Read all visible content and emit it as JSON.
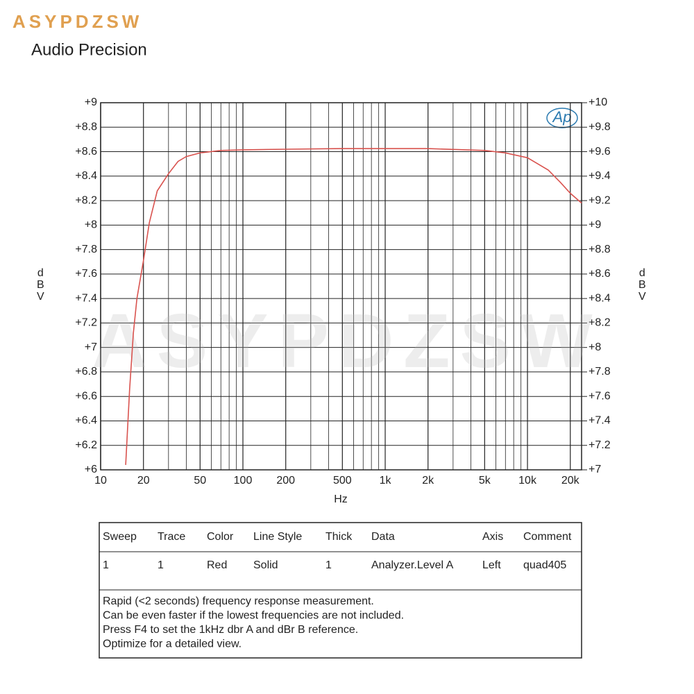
{
  "brand": "ASYPDZSW",
  "header": "Audio Precision",
  "chart_data": {
    "type": "line",
    "x_label": "Hz",
    "y_label": "dBV",
    "y2_label": "dBV",
    "logo": "Ap",
    "watermark": "ASYPDZSW",
    "x_scale": "log",
    "grid": true,
    "xlim": [
      10,
      24000
    ],
    "xticks": [
      10,
      20,
      50,
      100,
      200,
      500,
      {
        "value": 1000,
        "label": "1k"
      },
      {
        "value": 2000,
        "label": "2k"
      },
      {
        "value": 5000,
        "label": "5k"
      },
      {
        "value": 10000,
        "label": "10k"
      },
      {
        "value": 20000,
        "label": "20k"
      }
    ],
    "x_minor_ticks": [
      30,
      40,
      60,
      70,
      80,
      90,
      300,
      400,
      600,
      700,
      800,
      900,
      3000,
      4000,
      6000,
      7000,
      8000,
      9000
    ],
    "ylim": [
      6,
      9
    ],
    "yticks": [
      {
        "value": 6,
        "label": "+6"
      },
      {
        "value": 6.2,
        "label": "+6.2"
      },
      {
        "value": 6.4,
        "label": "+6.4"
      },
      {
        "value": 6.6,
        "label": "+6.6"
      },
      {
        "value": 6.8,
        "label": "+6.8"
      },
      {
        "value": 7,
        "label": "+7"
      },
      {
        "value": 7.2,
        "label": "+7.2"
      },
      {
        "value": 7.4,
        "label": "+7.4"
      },
      {
        "value": 7.6,
        "label": "+7.6"
      },
      {
        "value": 7.8,
        "label": "+7.8"
      },
      {
        "value": 8,
        "label": "+8"
      },
      {
        "value": 8.2,
        "label": "+8.2"
      },
      {
        "value": 8.4,
        "label": "+8.4"
      },
      {
        "value": 8.6,
        "label": "+8.6"
      },
      {
        "value": 8.8,
        "label": "+8.8"
      },
      {
        "value": 9,
        "label": "+9"
      }
    ],
    "y2lim": [
      7,
      10
    ],
    "y2ticks": [
      {
        "value": 7,
        "label": "+7"
      },
      {
        "value": 7.2,
        "label": "+7.2"
      },
      {
        "value": 7.4,
        "label": "+7.4"
      },
      {
        "value": 7.6,
        "label": "+7.6"
      },
      {
        "value": 7.8,
        "label": "+7.8"
      },
      {
        "value": 8,
        "label": "+8"
      },
      {
        "value": 8.2,
        "label": "+8.2"
      },
      {
        "value": 8.4,
        "label": "+8.4"
      },
      {
        "value": 8.6,
        "label": "+8.6"
      },
      {
        "value": 8.8,
        "label": "+8.8"
      },
      {
        "value": 9,
        "label": "+9"
      },
      {
        "value": 9.2,
        "label": "+9.2"
      },
      {
        "value": 9.4,
        "label": "+9.4"
      },
      {
        "value": 9.6,
        "label": "+9.6"
      },
      {
        "value": 9.8,
        "label": "+9.8"
      },
      {
        "value": 10,
        "label": "+10"
      }
    ],
    "x": [
      15,
      16,
      17,
      18,
      20,
      22,
      25,
      30,
      35,
      40,
      50,
      70,
      100,
      200,
      500,
      1000,
      2000,
      5000,
      7000,
      10000,
      14000,
      17000,
      20000,
      24000
    ],
    "series": [
      {
        "color": "#d9534f",
        "values": [
          6.04,
          6.66,
          7.12,
          7.4,
          7.71,
          8.02,
          8.28,
          8.42,
          8.52,
          8.56,
          8.59,
          8.61,
          8.615,
          8.62,
          8.625,
          8.625,
          8.625,
          8.61,
          8.59,
          8.55,
          8.45,
          8.35,
          8.26,
          8.18
        ]
      }
    ]
  },
  "table": {
    "columns": [
      "Sweep",
      "Trace",
      "Color",
      "Line Style",
      "Thick",
      "Data",
      "Axis",
      "Comment"
    ],
    "rows": [
      [
        "1",
        "1",
        "Red",
        "Solid",
        "1",
        "Analyzer.Level A",
        "Left",
        "quad405"
      ]
    ]
  },
  "notes": [
    "Rapid (<2 seconds) frequency response measurement.",
    "Can be even faster if the lowest frequencies are not included.",
    "Press F4 to set the 1kHz dbr A and dBr B reference.",
    "Optimize for a detailed view."
  ]
}
